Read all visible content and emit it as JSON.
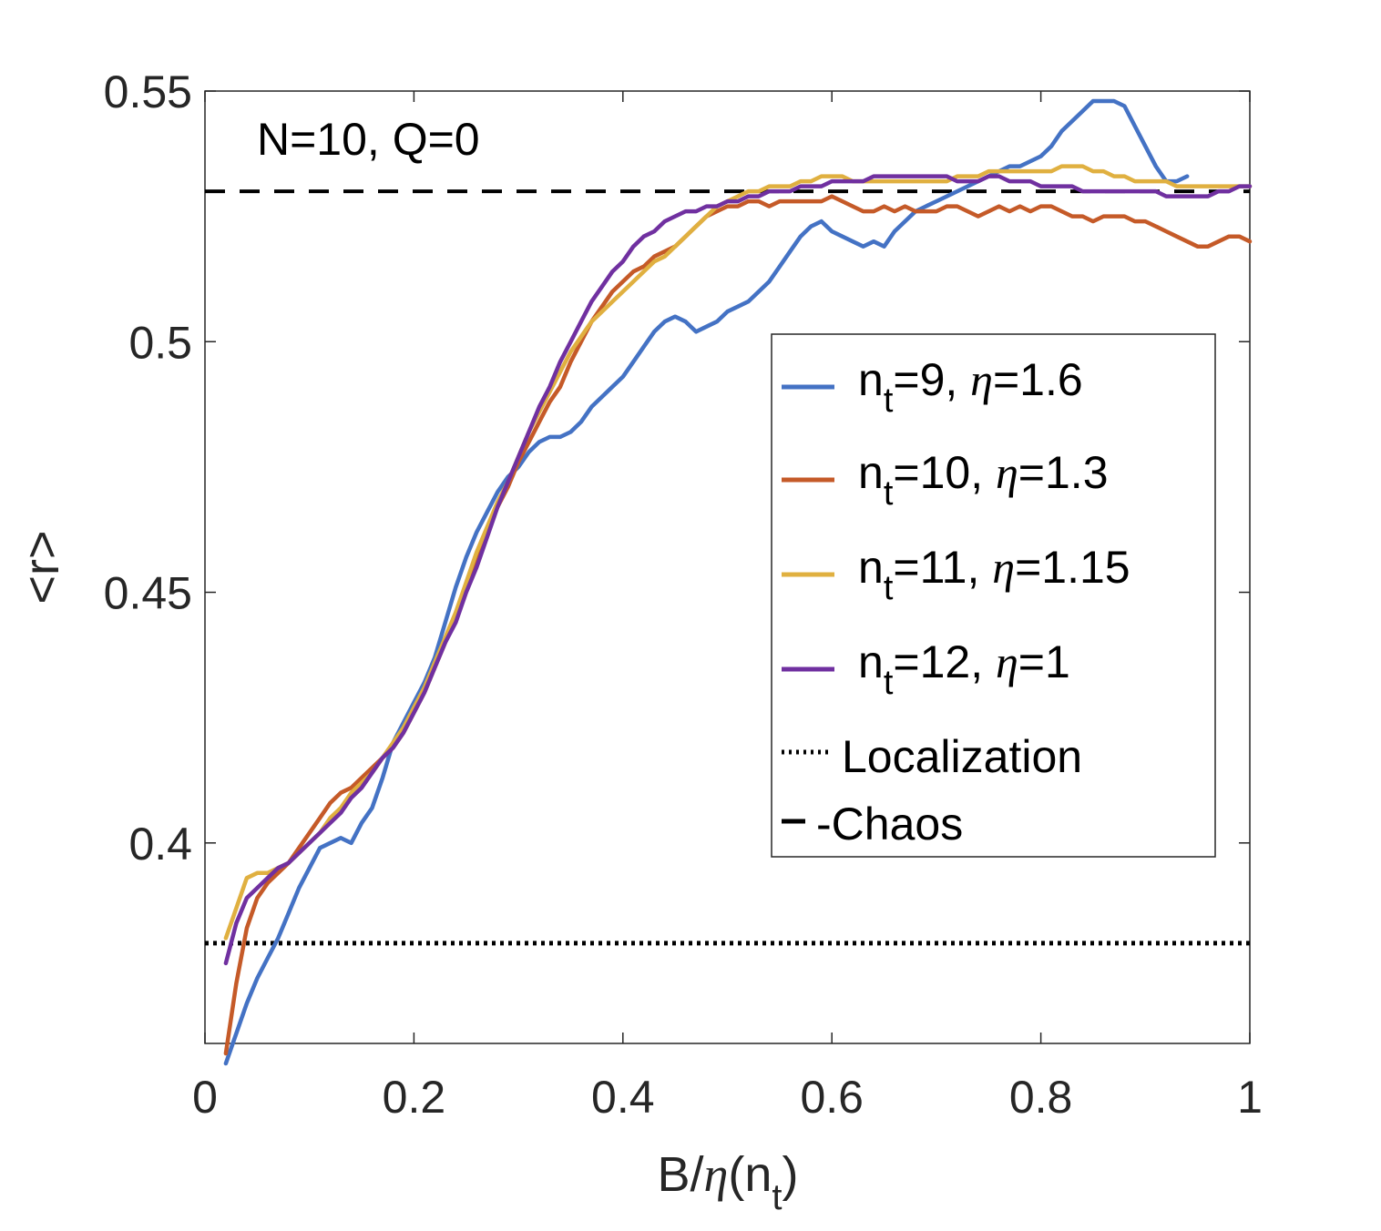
{
  "chart_data": {
    "type": "line",
    "xlabel_prefix": "B/",
    "xlabel_eta": "η",
    "xlabel_open": "(n",
    "xlabel_sub": "t",
    "xlabel_close": ")",
    "ylabel": "<r>",
    "xlim": [
      0,
      1
    ],
    "ylim": [
      0.36,
      0.55
    ],
    "xticks": [
      0,
      0.2,
      0.4,
      0.6,
      0.8,
      1
    ],
    "xtick_labels": [
      "0",
      "0.2",
      "0.4",
      "0.6",
      "0.8",
      "1"
    ],
    "yticks": [
      0.4,
      0.45,
      0.5,
      0.55
    ],
    "ytick_labels": [
      "0.4",
      "0.45",
      "0.5",
      "0.55"
    ],
    "annotation": "N=10, Q=0",
    "series": [
      {
        "name_prefix": "n",
        "name_sub": "t",
        "name_mid": "=9, ",
        "name_eta": "η",
        "name_suffix": "=1.6",
        "color": "#4472C4",
        "x": [
          0.02,
          0.03,
          0.04,
          0.05,
          0.06,
          0.07,
          0.08,
          0.09,
          0.1,
          0.11,
          0.12,
          0.13,
          0.14,
          0.15,
          0.16,
          0.17,
          0.18,
          0.19,
          0.2,
          0.21,
          0.22,
          0.23,
          0.24,
          0.25,
          0.26,
          0.27,
          0.28,
          0.29,
          0.3,
          0.31,
          0.32,
          0.33,
          0.34,
          0.35,
          0.36,
          0.37,
          0.38,
          0.39,
          0.4,
          0.41,
          0.42,
          0.43,
          0.44,
          0.45,
          0.46,
          0.47,
          0.48,
          0.49,
          0.5,
          0.51,
          0.52,
          0.53,
          0.54,
          0.55,
          0.56,
          0.57,
          0.58,
          0.59,
          0.6,
          0.61,
          0.62,
          0.63,
          0.64,
          0.65,
          0.66,
          0.67,
          0.68,
          0.69,
          0.7,
          0.71,
          0.72,
          0.73,
          0.74,
          0.75,
          0.76,
          0.77,
          0.78,
          0.79,
          0.8,
          0.81,
          0.82,
          0.83,
          0.84,
          0.85,
          0.86,
          0.87,
          0.88,
          0.89,
          0.9,
          0.91,
          0.92,
          0.93,
          0.94
        ],
        "y": [
          0.356,
          0.362,
          0.368,
          0.373,
          0.377,
          0.381,
          0.386,
          0.391,
          0.395,
          0.399,
          0.4,
          0.401,
          0.4,
          0.404,
          0.407,
          0.413,
          0.42,
          0.424,
          0.428,
          0.432,
          0.437,
          0.444,
          0.451,
          0.457,
          0.462,
          0.466,
          0.47,
          0.473,
          0.475,
          0.478,
          0.48,
          0.481,
          0.481,
          0.482,
          0.484,
          0.487,
          0.489,
          0.491,
          0.493,
          0.496,
          0.499,
          0.502,
          0.504,
          0.505,
          0.504,
          0.502,
          0.503,
          0.504,
          0.506,
          0.507,
          0.508,
          0.51,
          0.512,
          0.515,
          0.518,
          0.521,
          0.523,
          0.524,
          0.522,
          0.521,
          0.52,
          0.519,
          0.52,
          0.519,
          0.522,
          0.524,
          0.526,
          0.527,
          0.528,
          0.529,
          0.53,
          0.531,
          0.532,
          0.533,
          0.534,
          0.535,
          0.535,
          0.536,
          0.537,
          0.539,
          0.542,
          0.544,
          0.546,
          0.548,
          0.548,
          0.548,
          0.547,
          0.543,
          0.539,
          0.535,
          0.532,
          0.532,
          0.533
        ]
      },
      {
        "name_prefix": "n",
        "name_sub": "t",
        "name_mid": "=10, ",
        "name_eta": "η",
        "name_suffix": "=1.3",
        "color": "#C55A28",
        "x": [
          0.02,
          0.03,
          0.04,
          0.05,
          0.06,
          0.07,
          0.08,
          0.09,
          0.1,
          0.11,
          0.12,
          0.13,
          0.14,
          0.15,
          0.16,
          0.17,
          0.18,
          0.19,
          0.2,
          0.21,
          0.22,
          0.23,
          0.24,
          0.25,
          0.26,
          0.27,
          0.28,
          0.29,
          0.3,
          0.31,
          0.32,
          0.33,
          0.34,
          0.35,
          0.36,
          0.37,
          0.38,
          0.39,
          0.4,
          0.41,
          0.42,
          0.43,
          0.44,
          0.45,
          0.46,
          0.47,
          0.48,
          0.49,
          0.5,
          0.51,
          0.52,
          0.53,
          0.54,
          0.55,
          0.56,
          0.57,
          0.58,
          0.59,
          0.6,
          0.61,
          0.62,
          0.63,
          0.64,
          0.65,
          0.66,
          0.67,
          0.68,
          0.69,
          0.7,
          0.71,
          0.72,
          0.73,
          0.74,
          0.75,
          0.76,
          0.77,
          0.78,
          0.79,
          0.8,
          0.81,
          0.82,
          0.83,
          0.84,
          0.85,
          0.86,
          0.87,
          0.88,
          0.89,
          0.9,
          0.91,
          0.92,
          0.93,
          0.94,
          0.95,
          0.96,
          0.97,
          0.98,
          0.99,
          1.0
        ],
        "y": [
          0.358,
          0.372,
          0.383,
          0.389,
          0.392,
          0.394,
          0.396,
          0.399,
          0.402,
          0.405,
          0.408,
          0.41,
          0.411,
          0.413,
          0.415,
          0.417,
          0.419,
          0.422,
          0.426,
          0.43,
          0.435,
          0.44,
          0.445,
          0.451,
          0.457,
          0.462,
          0.467,
          0.471,
          0.476,
          0.48,
          0.484,
          0.488,
          0.491,
          0.496,
          0.5,
          0.504,
          0.507,
          0.51,
          0.512,
          0.514,
          0.515,
          0.517,
          0.518,
          0.519,
          0.521,
          0.523,
          0.525,
          0.526,
          0.527,
          0.527,
          0.528,
          0.528,
          0.527,
          0.528,
          0.528,
          0.528,
          0.528,
          0.528,
          0.529,
          0.528,
          0.527,
          0.526,
          0.526,
          0.527,
          0.526,
          0.527,
          0.526,
          0.526,
          0.526,
          0.527,
          0.527,
          0.526,
          0.525,
          0.526,
          0.527,
          0.526,
          0.527,
          0.526,
          0.527,
          0.527,
          0.526,
          0.525,
          0.525,
          0.524,
          0.525,
          0.525,
          0.525,
          0.524,
          0.524,
          0.523,
          0.522,
          0.521,
          0.52,
          0.519,
          0.519,
          0.52,
          0.521,
          0.521,
          0.52
        ]
      },
      {
        "name_prefix": "n",
        "name_sub": "t",
        "name_mid": "=11, ",
        "name_eta": "η",
        "name_suffix": "=1.15",
        "color": "#E0B040",
        "x": [
          0.02,
          0.03,
          0.04,
          0.05,
          0.06,
          0.07,
          0.08,
          0.09,
          0.1,
          0.11,
          0.12,
          0.13,
          0.14,
          0.15,
          0.16,
          0.17,
          0.18,
          0.19,
          0.2,
          0.21,
          0.22,
          0.23,
          0.24,
          0.25,
          0.26,
          0.27,
          0.28,
          0.29,
          0.3,
          0.31,
          0.32,
          0.33,
          0.34,
          0.35,
          0.36,
          0.37,
          0.38,
          0.39,
          0.4,
          0.41,
          0.42,
          0.43,
          0.44,
          0.45,
          0.46,
          0.47,
          0.48,
          0.49,
          0.5,
          0.51,
          0.52,
          0.53,
          0.54,
          0.55,
          0.56,
          0.57,
          0.58,
          0.59,
          0.6,
          0.61,
          0.62,
          0.63,
          0.64,
          0.65,
          0.66,
          0.67,
          0.68,
          0.69,
          0.7,
          0.71,
          0.72,
          0.73,
          0.74,
          0.75,
          0.76,
          0.77,
          0.78,
          0.79,
          0.8,
          0.81,
          0.82,
          0.83,
          0.84,
          0.85,
          0.86,
          0.87,
          0.88,
          0.89,
          0.9,
          0.91,
          0.92,
          0.93,
          0.94,
          0.95,
          0.96,
          0.97,
          0.98,
          0.99,
          1.0
        ],
        "y": [
          0.381,
          0.387,
          0.393,
          0.394,
          0.394,
          0.395,
          0.396,
          0.398,
          0.4,
          0.402,
          0.405,
          0.407,
          0.41,
          0.412,
          0.414,
          0.417,
          0.42,
          0.423,
          0.427,
          0.431,
          0.436,
          0.441,
          0.446,
          0.452,
          0.458,
          0.463,
          0.468,
          0.472,
          0.477,
          0.482,
          0.486,
          0.49,
          0.494,
          0.498,
          0.501,
          0.504,
          0.506,
          0.508,
          0.51,
          0.512,
          0.514,
          0.516,
          0.517,
          0.519,
          0.521,
          0.523,
          0.525,
          0.527,
          0.528,
          0.529,
          0.53,
          0.53,
          0.531,
          0.531,
          0.531,
          0.532,
          0.532,
          0.533,
          0.533,
          0.533,
          0.532,
          0.532,
          0.532,
          0.532,
          0.532,
          0.532,
          0.532,
          0.532,
          0.532,
          0.532,
          0.533,
          0.533,
          0.533,
          0.534,
          0.534,
          0.534,
          0.534,
          0.534,
          0.534,
          0.534,
          0.535,
          0.535,
          0.535,
          0.534,
          0.534,
          0.533,
          0.533,
          0.532,
          0.532,
          0.532,
          0.532,
          0.531,
          0.531,
          0.531,
          0.531,
          0.531,
          0.531,
          0.531,
          0.531
        ]
      },
      {
        "name_prefix": "n",
        "name_sub": "t",
        "name_mid": "=12, ",
        "name_eta": "η",
        "name_suffix": "=1",
        "color": "#7030A0",
        "x": [
          0.02,
          0.03,
          0.04,
          0.05,
          0.06,
          0.07,
          0.08,
          0.09,
          0.1,
          0.11,
          0.12,
          0.13,
          0.14,
          0.15,
          0.16,
          0.17,
          0.18,
          0.19,
          0.2,
          0.21,
          0.22,
          0.23,
          0.24,
          0.25,
          0.26,
          0.27,
          0.28,
          0.29,
          0.3,
          0.31,
          0.32,
          0.33,
          0.34,
          0.35,
          0.36,
          0.37,
          0.38,
          0.39,
          0.4,
          0.41,
          0.42,
          0.43,
          0.44,
          0.45,
          0.46,
          0.47,
          0.48,
          0.49,
          0.5,
          0.51,
          0.52,
          0.53,
          0.54,
          0.55,
          0.56,
          0.57,
          0.58,
          0.59,
          0.6,
          0.61,
          0.62,
          0.63,
          0.64,
          0.65,
          0.66,
          0.67,
          0.68,
          0.69,
          0.7,
          0.71,
          0.72,
          0.73,
          0.74,
          0.75,
          0.76,
          0.77,
          0.78,
          0.79,
          0.8,
          0.81,
          0.82,
          0.83,
          0.84,
          0.85,
          0.86,
          0.87,
          0.88,
          0.89,
          0.9,
          0.91,
          0.92,
          0.93,
          0.94,
          0.95,
          0.96,
          0.97,
          0.98,
          0.99,
          1.0
        ],
        "y": [
          0.376,
          0.384,
          0.389,
          0.391,
          0.393,
          0.395,
          0.396,
          0.398,
          0.4,
          0.402,
          0.404,
          0.406,
          0.409,
          0.411,
          0.414,
          0.417,
          0.419,
          0.422,
          0.426,
          0.43,
          0.435,
          0.44,
          0.444,
          0.45,
          0.455,
          0.461,
          0.467,
          0.472,
          0.477,
          0.482,
          0.487,
          0.491,
          0.496,
          0.5,
          0.504,
          0.508,
          0.511,
          0.514,
          0.516,
          0.519,
          0.521,
          0.522,
          0.524,
          0.525,
          0.526,
          0.526,
          0.527,
          0.527,
          0.528,
          0.528,
          0.529,
          0.529,
          0.53,
          0.53,
          0.53,
          0.531,
          0.531,
          0.531,
          0.532,
          0.532,
          0.532,
          0.532,
          0.533,
          0.533,
          0.533,
          0.533,
          0.533,
          0.533,
          0.533,
          0.533,
          0.532,
          0.532,
          0.532,
          0.533,
          0.533,
          0.532,
          0.532,
          0.532,
          0.531,
          0.531,
          0.531,
          0.531,
          0.53,
          0.53,
          0.53,
          0.53,
          0.53,
          0.53,
          0.53,
          0.53,
          0.529,
          0.529,
          0.529,
          0.529,
          0.529,
          0.53,
          0.53,
          0.531,
          0.531
        ]
      }
    ],
    "reference_lines": [
      {
        "name": "Localization",
        "value": 0.38,
        "style": "dotted",
        "color": "#000000"
      },
      {
        "name": "Chaos",
        "value": 0.53,
        "style": "dashed",
        "color": "#000000"
      }
    ],
    "legend": {
      "placement": "center-right",
      "localization_label": "Localization",
      "chaos_label": "Chaos",
      "chaos_prefix": "-"
    }
  }
}
